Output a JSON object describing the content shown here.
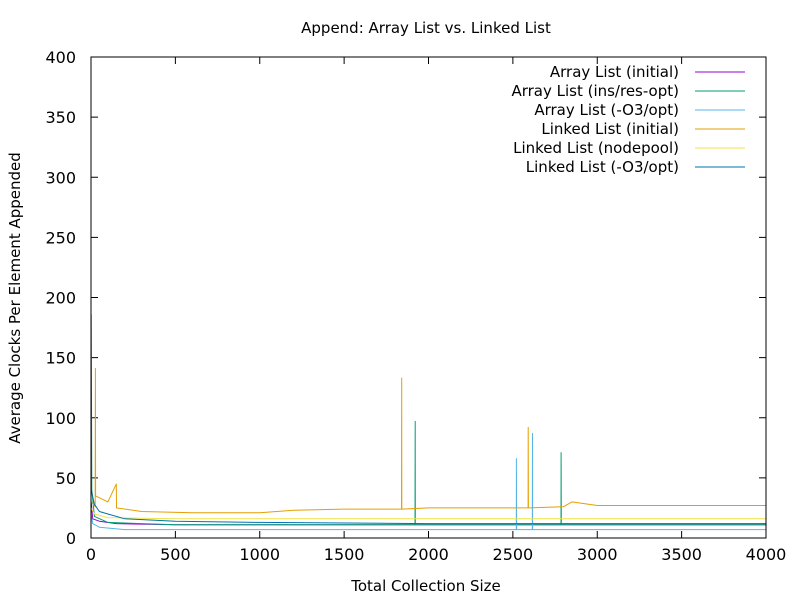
{
  "chart_data": {
    "type": "line",
    "title": "Append:  Array List vs. Linked List",
    "xlabel": "Total Collection Size",
    "ylabel": "Average Clocks Per Element Appended",
    "xlim": [
      0,
      4000
    ],
    "ylim": [
      0,
      400
    ],
    "xticks": [
      0,
      500,
      1000,
      1500,
      2000,
      2500,
      3000,
      3500,
      4000
    ],
    "yticks": [
      0,
      50,
      100,
      150,
      200,
      250,
      300,
      350,
      400
    ],
    "grid": false,
    "legend_position": "top-right",
    "series": [
      {
        "name": "Array List (initial)",
        "color": "#9400d3",
        "values": [
          [
            1,
            30
          ],
          [
            10,
            16
          ],
          [
            50,
            14
          ],
          [
            150,
            12
          ],
          [
            500,
            11
          ],
          [
            1000,
            11
          ],
          [
            1500,
            11
          ],
          [
            2000,
            11
          ],
          [
            2500,
            11
          ],
          [
            3000,
            11
          ],
          [
            3500,
            11
          ],
          [
            4000,
            11
          ]
        ]
      },
      {
        "name": "Array List (ins/res-opt)",
        "color": "#009e73",
        "values": [
          [
            1,
            186
          ],
          [
            5,
            40
          ],
          [
            20,
            18
          ],
          [
            100,
            13
          ],
          [
            500,
            11
          ],
          [
            1000,
            11
          ],
          [
            1500,
            11
          ],
          [
            1920,
            11
          ],
          [
            1921,
            97
          ],
          [
            1922,
            11
          ],
          [
            2500,
            11
          ],
          [
            2785,
            11
          ],
          [
            2786,
            71
          ],
          [
            2787,
            11
          ],
          [
            3000,
            11
          ],
          [
            3500,
            11
          ],
          [
            4000,
            11
          ]
        ]
      },
      {
        "name": "Array List (-O3/opt)",
        "color": "#56b4e9",
        "values": [
          [
            1,
            20
          ],
          [
            10,
            12
          ],
          [
            50,
            9
          ],
          [
            200,
            7
          ],
          [
            1000,
            7
          ],
          [
            2000,
            7
          ],
          [
            2520,
            7
          ],
          [
            2521,
            66
          ],
          [
            2522,
            7
          ],
          [
            2615,
            7
          ],
          [
            2616,
            87
          ],
          [
            2617,
            7
          ],
          [
            3000,
            7
          ],
          [
            4000,
            7
          ]
        ]
      },
      {
        "name": "Linked List (initial)",
        "color": "#e69f00",
        "values": [
          [
            1,
            30
          ],
          [
            25,
            26
          ],
          [
            26,
            141
          ],
          [
            27,
            35
          ],
          [
            100,
            30
          ],
          [
            150,
            45
          ],
          [
            151,
            25
          ],
          [
            300,
            22
          ],
          [
            600,
            21
          ],
          [
            1000,
            21
          ],
          [
            1200,
            23
          ],
          [
            1500,
            24
          ],
          [
            1840,
            24
          ],
          [
            1841,
            133
          ],
          [
            1842,
            24
          ],
          [
            2000,
            25
          ],
          [
            2500,
            25
          ],
          [
            2590,
            25
          ],
          [
            2591,
            92
          ],
          [
            2592,
            25
          ],
          [
            2800,
            26
          ],
          [
            2850,
            30
          ],
          [
            3000,
            27
          ],
          [
            3500,
            27
          ],
          [
            4000,
            27
          ]
        ]
      },
      {
        "name": "Linked List (nodepool)",
        "color": "#f0e442",
        "values": [
          [
            1,
            25
          ],
          [
            20,
            20
          ],
          [
            100,
            17
          ],
          [
            500,
            16
          ],
          [
            1000,
            16
          ],
          [
            1500,
            16
          ],
          [
            2000,
            16
          ],
          [
            2500,
            16
          ],
          [
            3000,
            16
          ],
          [
            3500,
            16
          ],
          [
            4000,
            16
          ]
        ]
      },
      {
        "name": "Linked List (-O3/opt)",
        "color": "#0072b2",
        "values": [
          [
            1,
            40
          ],
          [
            20,
            28
          ],
          [
            50,
            22
          ],
          [
            100,
            20
          ],
          [
            200,
            16
          ],
          [
            500,
            14
          ],
          [
            1000,
            13
          ],
          [
            2000,
            12
          ],
          [
            3000,
            12
          ],
          [
            4000,
            12
          ]
        ]
      }
    ]
  }
}
